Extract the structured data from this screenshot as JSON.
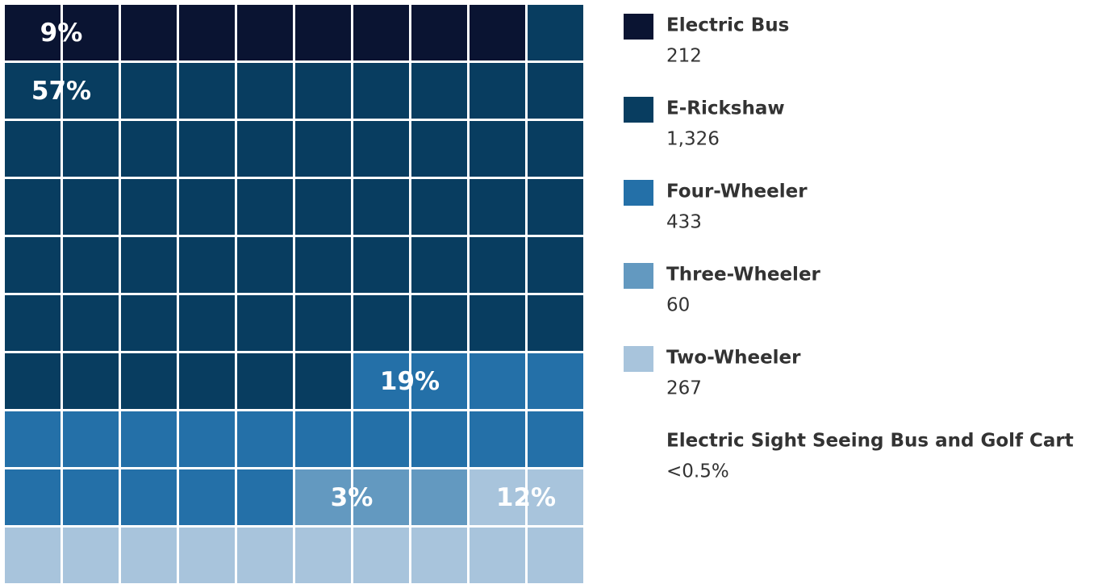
{
  "chart_data": {
    "type": "waffle",
    "categories": [
      "Electric Bus",
      "E-Rickshaw",
      "Four-Wheeler",
      "Three-Wheeler",
      "Two-Wheeler"
    ],
    "values": [
      212,
      1326,
      433,
      60,
      267
    ],
    "value_labels": [
      "212",
      "1,326",
      "433",
      "60",
      "267"
    ],
    "percents": [
      9,
      57,
      19,
      3,
      12
    ],
    "percent_labels": [
      "9%",
      "57%",
      "19%",
      "3%",
      "12%"
    ],
    "colors": [
      "#0a1432",
      "#083d60",
      "#2470a8",
      "#6399c0",
      "#a8c4dc"
    ],
    "other": {
      "name": "Electric Sight Seeing Bus and Golf Cart",
      "value_label": "<0.5%"
    }
  }
}
